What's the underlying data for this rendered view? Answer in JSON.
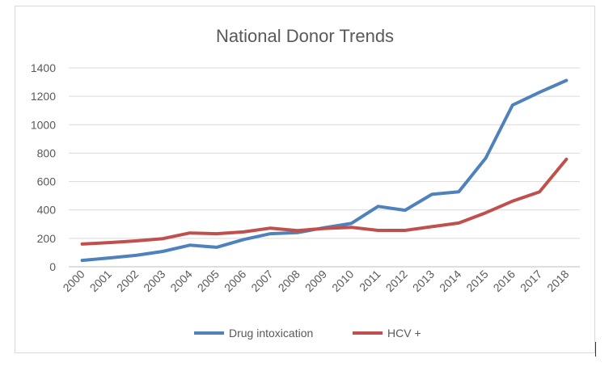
{
  "chart_data": {
    "type": "line",
    "title": "National Donor Trends",
    "xlabel": "",
    "ylabel": "",
    "x": [
      "2000",
      "2001",
      "2002",
      "2003",
      "2004",
      "2005",
      "2006",
      "2007",
      "2008",
      "2009",
      "2010",
      "2011",
      "2012",
      "2013",
      "2014",
      "2015",
      "2016",
      "2017",
      "2018"
    ],
    "ylim": [
      0,
      1400
    ],
    "yticks": [
      0,
      200,
      400,
      600,
      800,
      1000,
      1200,
      1400
    ],
    "grid": true,
    "legend_position": "bottom",
    "series": [
      {
        "name": "Drug intoxication",
        "color": "#4f81bd",
        "values": [
          45,
          62,
          80,
          108,
          152,
          137,
          192,
          233,
          240,
          275,
          305,
          425,
          398,
          510,
          528,
          765,
          1138,
          1228,
          1312
        ]
      },
      {
        "name": "HCV +",
        "color": "#c0504d",
        "values": [
          160,
          170,
          182,
          198,
          238,
          233,
          245,
          272,
          255,
          270,
          278,
          256,
          256,
          282,
          308,
          380,
          462,
          527,
          757
        ]
      }
    ]
  }
}
